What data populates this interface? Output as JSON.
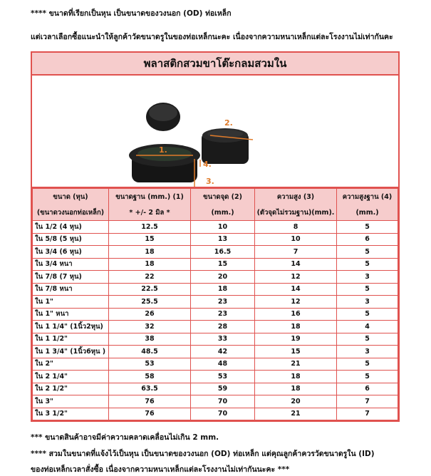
{
  "notes_top": [
    "**** ขนาดที่เรียกเป็นหุน เป็นขนาดของวงนอก (OD) ท่อเหล็ก",
    "แต่เวลาเลือกซื้อแนะนำให้ลูกค้าวัดขนาดรูในของท่อเหล็กนะคะ เนื่องจากความหนาเหล็กแต่ละโรงงานไม่เท่ากันคะ"
  ],
  "title": "พลาสติกสวมขาโต๊ะกลมสวมใน",
  "photo_labels": [
    "1.",
    "2.",
    "3.",
    "4."
  ],
  "headers": [
    [
      "ขนาด (หุน)",
      "(ขนาดวงนอกท่อเหล็ก)"
    ],
    [
      "ขนาดฐาน (mm.) (1)",
      "* +/- 2 มิล *"
    ],
    [
      "ขนาดจุด (2)",
      "(mm.)"
    ],
    [
      "ความสูง (3)",
      "(ตัวจุดไม่รวมฐาน)(mm)."
    ],
    [
      "ความสูงฐาน (4)",
      "(mm.)"
    ]
  ],
  "rows": [
    [
      "ใน 1/2 (4 หุน)",
      "12.5",
      "10",
      "8",
      "5"
    ],
    [
      "ใน 5/8 (5 หุน)",
      "15",
      "13",
      "10",
      "6"
    ],
    [
      "ใน 3/4 (6 หุน)",
      "18",
      "16.5",
      "7",
      "5"
    ],
    [
      "ใน 3/4 หนา",
      "18",
      "15",
      "14",
      "5"
    ],
    [
      "ใน 7/8 (7 หุน)",
      "22",
      "20",
      "12",
      "3"
    ],
    [
      "ใน 7/8 หนา",
      "22.5",
      "18",
      "14",
      "5"
    ],
    [
      "ใน 1\"",
      "25.5",
      "23",
      "12",
      "3"
    ],
    [
      "ใน 1\" หนา",
      "26",
      "23",
      "16",
      "5"
    ],
    [
      "ใน 1 1/4\" (1นิ้ว2หุน)",
      "32",
      "28",
      "18",
      "4"
    ],
    [
      "ใน 1 1/2\"",
      "38",
      "33",
      "19",
      "5"
    ],
    [
      "ใน 1 3/4\" (1นิ้ว6หุน )",
      "48.5",
      "42",
      "15",
      "3"
    ],
    [
      "ใน 2\"",
      "53",
      "48",
      "21",
      "5"
    ],
    [
      "ใน 2 1/4\"",
      "58",
      "53",
      "18",
      "5"
    ],
    [
      "ใน 2 1/2\"",
      "63.5",
      "59",
      "18",
      "6"
    ],
    [
      "ใน 3\"",
      "76",
      "70",
      "20",
      "7"
    ],
    [
      "ใน 3 1/2\"",
      "76",
      "70",
      "21",
      "7"
    ]
  ],
  "notes_bottom": [
    "*** ขนาดสินค้าอาจมีค่าความคลาดเคลื่อนไม่เกิน 2 mm.",
    "**** สวมในขนาดที่แจ้งไว้เป็นหุน เป็นขนาดของวงนอก (OD) ท่อเหล็ก  แต่คุณลูกค้าควรวัดขนาดรูใน (ID)",
    "ของท่อเหล็กเวลาสั่งซื้อ เนื่องจากความหนาเหล็กแต่ละโรงงานไม่เท่ากันนะคะ    ***"
  ],
  "colors": {
    "border": "#e0524f",
    "header_bg": "#f6cccc",
    "label": "#e07b2a"
  }
}
